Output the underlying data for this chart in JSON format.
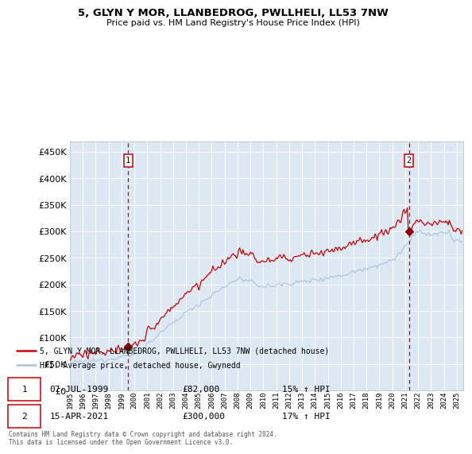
{
  "title": "5, GLYN Y MOR, LLANBEDROG, PWLLHELI, LL53 7NW",
  "subtitle": "Price paid vs. HM Land Registry's House Price Index (HPI)",
  "legend_line1": "5, GLYN Y MOR, LLANBEDROG, PWLLHELI, LL53 7NW (detached house)",
  "legend_line2": "HPI: Average price, detached house, Gwynedd",
  "transaction1_date": "07-JUL-1999",
  "transaction1_price": "£82,000",
  "transaction1_hpi": "15% ↑ HPI",
  "transaction2_date": "15-APR-2021",
  "transaction2_price": "£300,000",
  "transaction2_hpi": "17% ↑ HPI",
  "footer": "Contains HM Land Registry data © Crown copyright and database right 2024.\nThis data is licensed under the Open Government Licence v3.0.",
  "plot_bg_color": "#dce9f5",
  "hpi_line_color": "#a8c4e0",
  "price_line_color": "#cc0000",
  "marker_color": "#880000",
  "vline_color": "#cc0000",
  "grid_color": "#c8d8e8",
  "ylim": [
    0,
    470000
  ],
  "yticks": [
    0,
    50000,
    100000,
    150000,
    200000,
    250000,
    300000,
    350000,
    400000,
    450000
  ],
  "transaction1_year": 1999.52,
  "transaction2_year": 2021.29
}
